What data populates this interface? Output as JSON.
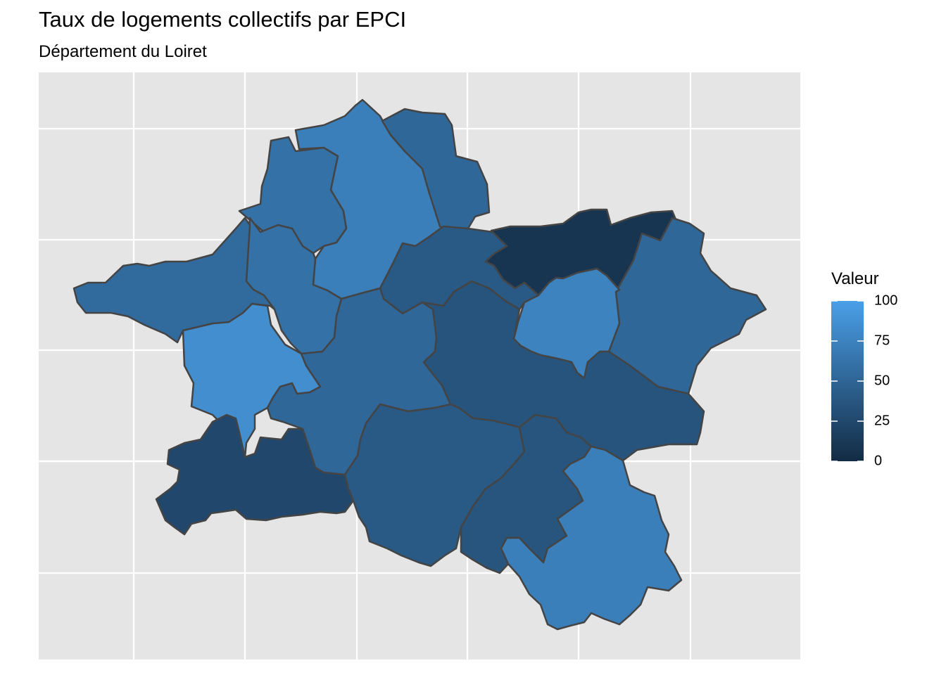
{
  "chart_data": {
    "type": "choropleth",
    "title": "Taux de logements collectifs par EPCI",
    "subtitle": "Département du Loiret",
    "legend": {
      "title": "Valeur",
      "ticks": [
        "100",
        "75",
        "50",
        "25",
        "0"
      ],
      "range": [
        0,
        100
      ],
      "placement": "right"
    },
    "grid": true,
    "regions": [
      {
        "value": 60
      },
      {
        "value": 72
      },
      {
        "value": 52
      },
      {
        "value": 8
      },
      {
        "value": 52
      },
      {
        "value": 60
      },
      {
        "value": 85
      },
      {
        "value": 55
      },
      {
        "value": 40
      },
      {
        "value": 76
      },
      {
        "value": 52
      },
      {
        "value": 35
      },
      {
        "value": 25
      },
      {
        "value": 40
      },
      {
        "value": 36
      },
      {
        "value": 72
      },
      {
        "value": 40
      }
    ]
  }
}
